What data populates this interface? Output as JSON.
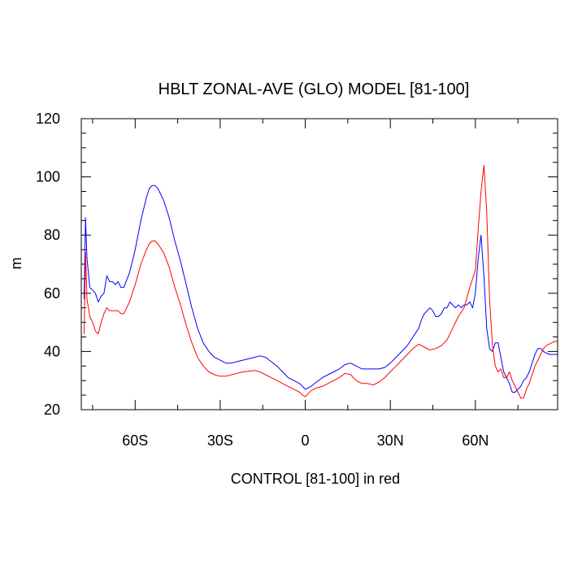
{
  "chart_data": {
    "type": "line",
    "title": "HBLT ZONAL-AVE (GLO) MODEL [81-100]",
    "xlabel": "CONTROL [81-100] in red",
    "ylabel": "m",
    "xlim": [
      -79,
      89
    ],
    "ylim": [
      20,
      120
    ],
    "x_ticks": [
      -60,
      -30,
      0,
      30,
      60
    ],
    "x_tick_labels": [
      "60S",
      "30S",
      "0",
      "30N",
      "60N"
    ],
    "y_ticks": [
      20,
      40,
      60,
      80,
      100,
      120
    ],
    "y_tick_labels": [
      "20",
      "40",
      "60",
      "80",
      "100",
      "120"
    ],
    "grid": false,
    "legend": "none",
    "colors": {
      "model": "#0000ff",
      "control": "#ff0000",
      "axis": "#000000"
    },
    "series": [
      {
        "key": "model",
        "color": "#0000ff",
        "x": [
          -78,
          -77.5,
          -77,
          -76,
          -75,
          -74,
          -73,
          -72,
          -71,
          -70,
          -69,
          -68,
          -67,
          -66,
          -65,
          -64,
          -62,
          -60,
          -58,
          -56,
          -55,
          -54,
          -53,
          -52,
          -50,
          -48,
          -46,
          -44,
          -42,
          -40,
          -38,
          -36,
          -34,
          -32,
          -30,
          -28,
          -26,
          -24,
          -22,
          -20,
          -18,
          -16,
          -14,
          -12,
          -10,
          -8,
          -6,
          -4,
          -2,
          0,
          2,
          4,
          6,
          8,
          10,
          12,
          14,
          16,
          18,
          20,
          22,
          24,
          26,
          28,
          30,
          32,
          34,
          36,
          38,
          40,
          41,
          42,
          43,
          44,
          45,
          46,
          47,
          48,
          49,
          50,
          51,
          52,
          53,
          54,
          55,
          56,
          57,
          58,
          59,
          60,
          61,
          62,
          63,
          64,
          65,
          66,
          67,
          68,
          69,
          70,
          71,
          72,
          73,
          74,
          75,
          76,
          77,
          78,
          79,
          80,
          81,
          82,
          83,
          84,
          85,
          86,
          87,
          88,
          89
        ],
        "y": [
          58,
          86,
          72,
          62,
          61,
          60,
          57,
          59,
          60,
          66,
          64,
          64,
          63,
          64,
          62,
          62,
          67,
          75,
          85,
          93,
          96,
          97,
          97,
          96,
          92,
          86,
          78,
          71,
          63,
          55,
          48,
          43,
          40,
          38,
          37,
          36,
          36,
          36.5,
          37,
          37.5,
          38,
          38.5,
          38,
          36.5,
          35,
          33,
          31,
          30,
          29,
          27,
          28,
          29.5,
          31,
          32,
          33,
          34,
          35.5,
          36,
          35,
          34,
          34,
          34,
          34,
          34.5,
          36,
          38,
          40,
          42,
          45,
          48,
          51,
          53,
          54,
          55,
          54,
          52,
          52,
          53,
          55,
          55,
          57,
          56,
          55,
          56,
          55,
          56,
          56,
          57,
          55,
          60,
          72,
          80,
          66,
          48,
          41,
          40,
          43,
          43,
          38,
          33,
          31,
          29,
          26,
          26,
          27,
          28,
          30,
          31,
          33,
          36,
          39,
          41,
          41,
          40,
          39.5,
          39,
          39,
          39,
          39
        ]
      },
      {
        "key": "control",
        "color": "#ff0000",
        "x": [
          -78,
          -77.5,
          -77,
          -76,
          -75,
          -74,
          -73,
          -72,
          -71,
          -70,
          -69,
          -68,
          -67,
          -66,
          -65,
          -64,
          -62,
          -60,
          -58,
          -56,
          -55,
          -54,
          -53,
          -52,
          -50,
          -48,
          -46,
          -44,
          -42,
          -40,
          -38,
          -36,
          -34,
          -32,
          -30,
          -28,
          -26,
          -24,
          -22,
          -20,
          -18,
          -16,
          -14,
          -12,
          -10,
          -8,
          -6,
          -4,
          -2,
          -1,
          0,
          1,
          2,
          4,
          6,
          8,
          10,
          12,
          14,
          16,
          18,
          20,
          22,
          24,
          26,
          28,
          30,
          32,
          34,
          36,
          38,
          40,
          42,
          44,
          46,
          48,
          50,
          52,
          54,
          56,
          58,
          59,
          60,
          61,
          62,
          63,
          64,
          65,
          66,
          67,
          68,
          69,
          70,
          71,
          72,
          73,
          74,
          75,
          76,
          77,
          78,
          79,
          80,
          81,
          82,
          83,
          84,
          85,
          86,
          87,
          88,
          89
        ],
        "y": [
          46,
          74,
          58,
          52,
          50,
          47,
          46,
          50,
          53,
          55,
          54,
          54,
          54,
          54,
          53,
          53,
          57,
          63,
          70,
          75,
          77,
          78,
          78,
          77,
          74,
          69,
          62,
          56,
          49,
          43,
          38,
          35,
          33,
          32,
          31.5,
          31.5,
          32,
          32.5,
          33,
          33.2,
          33.5,
          33,
          32,
          31,
          30,
          29,
          28,
          27,
          26,
          25,
          24.5,
          25.5,
          26.5,
          27.5,
          28,
          29,
          30,
          31,
          32.5,
          32,
          30,
          29,
          29,
          28.5,
          29.5,
          31,
          33,
          35,
          37,
          39,
          41,
          42.5,
          41.5,
          40.5,
          41,
          42,
          44,
          48,
          52,
          55,
          62,
          65,
          68,
          82,
          95,
          104,
          88,
          58,
          42,
          35,
          33,
          34,
          31,
          31,
          33,
          30,
          28,
          26,
          24,
          24,
          27,
          29,
          32,
          35,
          37,
          39,
          41,
          42,
          42.5,
          43,
          43.5,
          43.5
        ]
      }
    ]
  }
}
